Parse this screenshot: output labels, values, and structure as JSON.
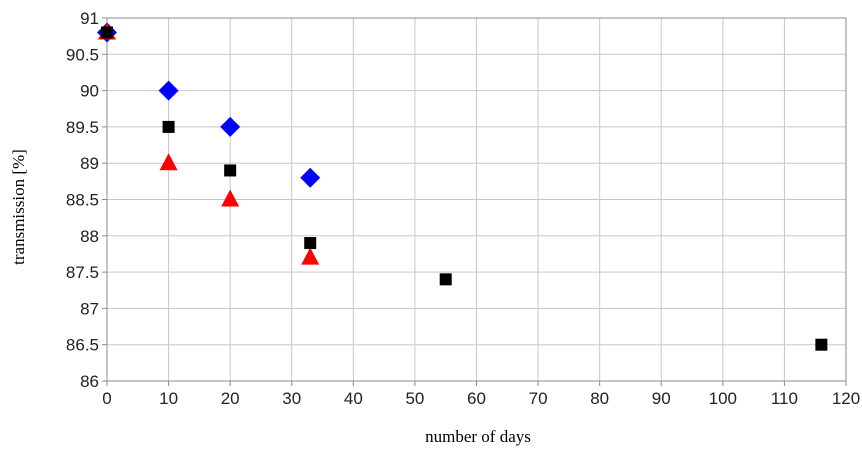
{
  "chart_data": {
    "type": "scatter",
    "xlabel": "number of days",
    "ylabel": "transmission  [%]",
    "xlim": [
      0,
      120
    ],
    "ylim": [
      86,
      91
    ],
    "xticks": [
      0,
      10,
      20,
      30,
      40,
      50,
      60,
      70,
      80,
      90,
      100,
      110,
      120
    ],
    "xtick_labels": [
      "0",
      "10",
      "20",
      "30",
      "40",
      "50",
      "60",
      "70",
      "80",
      "90",
      "100",
      "110",
      "120"
    ],
    "yticks": [
      86,
      86.5,
      87,
      87.5,
      88,
      88.5,
      89,
      89.5,
      90,
      90.5,
      91
    ],
    "ytick_labels": [
      "86",
      "86.5",
      "87",
      "87.5",
      "88",
      "88.5",
      "89",
      "89.5",
      "90",
      "90.5",
      "91"
    ],
    "grid": true,
    "legend": "none",
    "series": [
      {
        "marker": "diamond",
        "color": "#0000ff",
        "x": [
          0,
          10,
          20,
          33
        ],
        "y": [
          90.8,
          90.0,
          89.5,
          88.8
        ]
      },
      {
        "marker": "triangle",
        "color": "#ff0000",
        "x": [
          0,
          10,
          20,
          33
        ],
        "y": [
          90.8,
          89.0,
          88.5,
          87.7
        ]
      },
      {
        "marker": "square",
        "color": "#000000",
        "x": [
          0,
          10,
          20,
          33,
          55,
          116
        ],
        "y": [
          90.8,
          89.5,
          88.9,
          87.9,
          87.4,
          86.5
        ]
      }
    ],
    "colors": {
      "grid": "#c8c8c8",
      "axis": "#8c8c8c"
    }
  }
}
